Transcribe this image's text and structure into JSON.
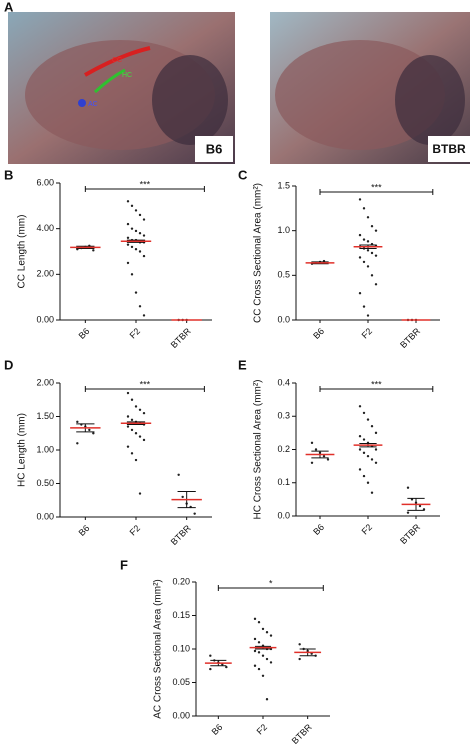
{
  "figure": {
    "panel_a": {
      "letter": "A",
      "left_label": "B6",
      "right_label": "BTBR",
      "annotations": [
        "CC",
        "HC",
        "AC"
      ]
    }
  },
  "chart_data": [
    {
      "type": "dot",
      "panel": "B",
      "ylabel": "CC Length (mm)",
      "categories": [
        "B6",
        "F2",
        "BTBR"
      ],
      "values": [
        3.18,
        3.45,
        0
      ],
      "errors": [
        0.05,
        0.05,
        0
      ],
      "significance": "***",
      "points": [
        [
          3.1,
          3.15,
          3.2,
          3.25,
          3.05
        ],
        [
          5.2,
          5.0,
          4.8,
          4.6,
          4.4,
          4.2,
          4.0,
          3.9,
          3.8,
          3.7,
          3.6,
          3.5,
          3.5,
          3.4,
          3.4,
          3.3,
          3.2,
          3.1,
          3.0,
          2.8,
          2.5,
          2.0,
          1.2,
          0.6,
          0.2
        ],
        [
          0,
          0,
          0
        ]
      ],
      "ylim": [
        0,
        6
      ],
      "yticks": [
        {
          "value": 0,
          "label": "0.00"
        },
        {
          "value": 2,
          "label": "2.00"
        },
        {
          "value": 4,
          "label": "4.00"
        },
        {
          "value": 6,
          "label": "6.00"
        }
      ],
      "mean_color": "#e0302a",
      "point_color": "#222222"
    },
    {
      "type": "dot",
      "panel": "C",
      "ylabel": "CC Cross Sectional Area (mm²)",
      "categories": [
        "B6",
        "F2",
        "BTBR"
      ],
      "values": [
        0.64,
        0.82,
        0
      ],
      "errors": [
        0.01,
        0.02,
        0
      ],
      "significance": "***",
      "points": [
        [
          0.63,
          0.64,
          0.65,
          0.66
        ],
        [
          1.35,
          1.25,
          1.15,
          1.05,
          1.0,
          0.95,
          0.9,
          0.88,
          0.85,
          0.83,
          0.82,
          0.8,
          0.78,
          0.75,
          0.72,
          0.7,
          0.65,
          0.6,
          0.5,
          0.4,
          0.3,
          0.15,
          0.05
        ],
        [
          0,
          0,
          0
        ]
      ],
      "ylim": [
        0,
        1.5
      ],
      "yticks": [
        {
          "value": 0,
          "label": "0.0"
        },
        0.5,
        {
          "value": 1,
          "label": "1.0"
        },
        1.5
      ],
      "mean_color": "#e0302a",
      "point_color": "#222222"
    },
    {
      "type": "dot",
      "panel": "D",
      "ylabel": "HC Length (mm)",
      "categories": [
        "B6",
        "F2",
        "BTBR"
      ],
      "values": [
        1.33,
        1.4,
        0.26
      ],
      "errors": [
        0.06,
        0.02,
        0.12
      ],
      "significance": "***",
      "points": [
        [
          1.42,
          1.38,
          1.35,
          1.3,
          1.25,
          1.1
        ],
        [
          1.85,
          1.75,
          1.65,
          1.6,
          1.55,
          1.5,
          1.45,
          1.42,
          1.4,
          1.38,
          1.35,
          1.3,
          1.25,
          1.2,
          1.15,
          1.05,
          0.95,
          0.85,
          0.35
        ],
        [
          0.63,
          0.3,
          0.2,
          0.15,
          0.05
        ]
      ],
      "ylim": [
        0,
        2
      ],
      "yticks": [
        {
          "value": 0,
          "label": "0.00"
        },
        {
          "value": 0.5,
          "label": "0.50"
        },
        {
          "value": 1,
          "label": "1.00"
        },
        {
          "value": 1.5,
          "label": "1.50"
        },
        {
          "value": 2,
          "label": "2.00"
        }
      ],
      "mean_color": "#e0302a",
      "point_color": "#222222"
    },
    {
      "type": "dot",
      "panel": "E",
      "ylabel": "HC Cross Sectional Area (mm²)",
      "categories": [
        "B6",
        "F2",
        "BTBR"
      ],
      "values": [
        0.185,
        0.213,
        0.035
      ],
      "errors": [
        0.01,
        0.005,
        0.018
      ],
      "significance": "***",
      "points": [
        [
          0.22,
          0.2,
          0.19,
          0.18,
          0.17,
          0.16
        ],
        [
          0.33,
          0.31,
          0.29,
          0.27,
          0.25,
          0.24,
          0.23,
          0.22,
          0.21,
          0.2,
          0.2,
          0.19,
          0.18,
          0.17,
          0.16,
          0.14,
          0.12,
          0.1,
          0.07
        ],
        [
          0.085,
          0.05,
          0.04,
          0.03,
          0.02,
          0.01
        ]
      ],
      "ylim": [
        0,
        0.4
      ],
      "yticks": [
        {
          "value": 0,
          "label": "0.0"
        },
        0.1,
        0.2,
        0.3,
        0.4
      ],
      "mean_color": "#e0302a",
      "point_color": "#222222"
    },
    {
      "type": "dot",
      "panel": "F",
      "ylabel": "AC Cross Sectional Area (mm²)",
      "categories": [
        "B6",
        "F2",
        "BTBR"
      ],
      "values": [
        0.079,
        0.102,
        0.095
      ],
      "errors": [
        0.004,
        0.002,
        0.005
      ],
      "significance": "*",
      "points": [
        [
          0.09,
          0.083,
          0.08,
          0.077,
          0.073,
          0.07
        ],
        [
          0.145,
          0.14,
          0.13,
          0.125,
          0.12,
          0.115,
          0.11,
          0.105,
          0.1,
          0.1,
          0.097,
          0.095,
          0.09,
          0.085,
          0.08,
          0.075,
          0.07,
          0.06,
          0.025
        ],
        [
          0.107,
          0.1,
          0.097,
          0.093,
          0.09,
          0.085
        ]
      ],
      "ylim": [
        0,
        0.2
      ],
      "yticks": [
        {
          "value": 0,
          "label": "0.00"
        },
        {
          "value": 0.05,
          "label": "0.05"
        },
        {
          "value": 0.1,
          "label": "0.10"
        },
        {
          "value": 0.15,
          "label": "0.15"
        },
        {
          "value": 0.2,
          "label": "0.20"
        }
      ],
      "mean_color": "#e0302a",
      "point_color": "#222222"
    }
  ]
}
